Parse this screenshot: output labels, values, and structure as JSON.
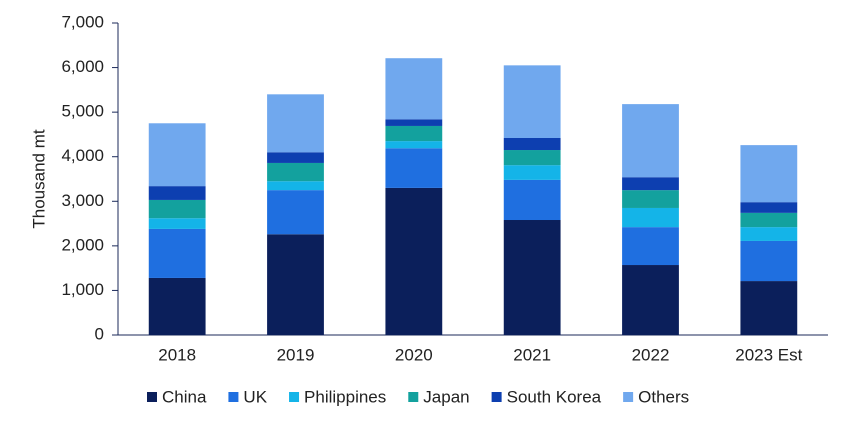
{
  "chart_data": {
    "type": "stacked_bar",
    "y_label": "Thousand mt",
    "categories": [
      "2018",
      "2019",
      "2020",
      "2021",
      "2022",
      "2023 Est"
    ],
    "series": [
      {
        "name": "China",
        "color": "#0b1f5b",
        "values": [
          1280,
          2260,
          3300,
          2580,
          1570,
          1210
        ]
      },
      {
        "name": "UK",
        "color": "#1f6fe0",
        "values": [
          1100,
          990,
          890,
          900,
          850,
          900
        ]
      },
      {
        "name": "Philippines",
        "color": "#14b4e8",
        "values": [
          240,
          200,
          160,
          330,
          430,
          310
        ]
      },
      {
        "name": "Japan",
        "color": "#13a19e",
        "values": [
          410,
          410,
          340,
          340,
          400,
          320
        ]
      },
      {
        "name": "South Korea",
        "color": "#0d3fb0",
        "values": [
          310,
          240,
          150,
          270,
          290,
          240
        ]
      },
      {
        "name": "Others",
        "color": "#70a8ee",
        "values": [
          1410,
          1300,
          1370,
          1630,
          1640,
          1280
        ]
      }
    ],
    "ylim": [
      0,
      7000
    ],
    "yticks": [
      0,
      {
        "value": 1000,
        "label": "1,000"
      },
      {
        "value": 2000,
        "label": "2,000"
      },
      {
        "value": 3000,
        "label": "3,000"
      },
      {
        "value": 4000,
        "label": "4,000"
      },
      {
        "value": 5000,
        "label": "5,000"
      },
      {
        "value": 6000,
        "label": "6,000"
      },
      {
        "value": 7000,
        "label": "7,000"
      }
    ],
    "grid": false,
    "legend": "bottom"
  }
}
